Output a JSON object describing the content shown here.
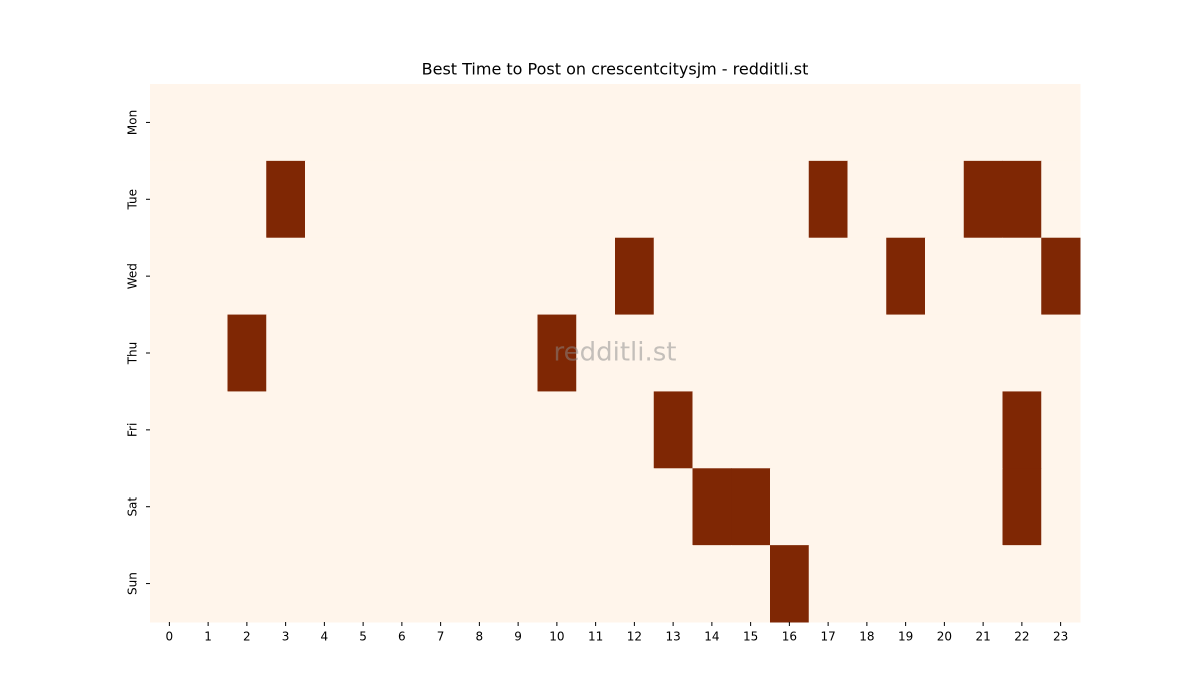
{
  "chart_data": {
    "type": "heatmap",
    "title": "Best Time to Post on crescentcitysjm - redditli.st",
    "watermark": "redditli.st",
    "x": [
      "0",
      "1",
      "2",
      "3",
      "4",
      "5",
      "6",
      "7",
      "8",
      "9",
      "10",
      "11",
      "12",
      "13",
      "14",
      "15",
      "16",
      "17",
      "18",
      "19",
      "20",
      "21",
      "22",
      "23"
    ],
    "y": [
      "Mon",
      "Tue",
      "Wed",
      "Thu",
      "Fri",
      "Sat",
      "Sun"
    ],
    "colormap": [
      "#fff5eb",
      "#7f2704"
    ],
    "values": [
      [
        0,
        0,
        0,
        0,
        0,
        0,
        0,
        0,
        0,
        0,
        0,
        0,
        0,
        0,
        0,
        0,
        0,
        0,
        0,
        0,
        0,
        0,
        0,
        0
      ],
      [
        0,
        0,
        0,
        1,
        0,
        0,
        0,
        0,
        0,
        0,
        0,
        0,
        0,
        0,
        0,
        0,
        0,
        1,
        0,
        0,
        0,
        1,
        1,
        0
      ],
      [
        0,
        0,
        0,
        0,
        0,
        0,
        0,
        0,
        0,
        0,
        0,
        0,
        1,
        0,
        0,
        0,
        0,
        0,
        0,
        1,
        0,
        0,
        0,
        1
      ],
      [
        0,
        0,
        1,
        0,
        0,
        0,
        0,
        0,
        0,
        0,
        1,
        0,
        0,
        0,
        0,
        0,
        0,
        0,
        0,
        0,
        0,
        0,
        0,
        0
      ],
      [
        0,
        0,
        0,
        0,
        0,
        0,
        0,
        0,
        0,
        0,
        0,
        0,
        0,
        1,
        0,
        0,
        0,
        0,
        0,
        0,
        0,
        0,
        1,
        0
      ],
      [
        0,
        0,
        0,
        0,
        0,
        0,
        0,
        0,
        0,
        0,
        0,
        0,
        0,
        0,
        1,
        1,
        0,
        0,
        0,
        0,
        0,
        0,
        1,
        0
      ],
      [
        0,
        0,
        0,
        0,
        0,
        0,
        0,
        0,
        0,
        0,
        0,
        0,
        0,
        0,
        0,
        0,
        1,
        0,
        0,
        0,
        0,
        0,
        0,
        0
      ]
    ]
  }
}
